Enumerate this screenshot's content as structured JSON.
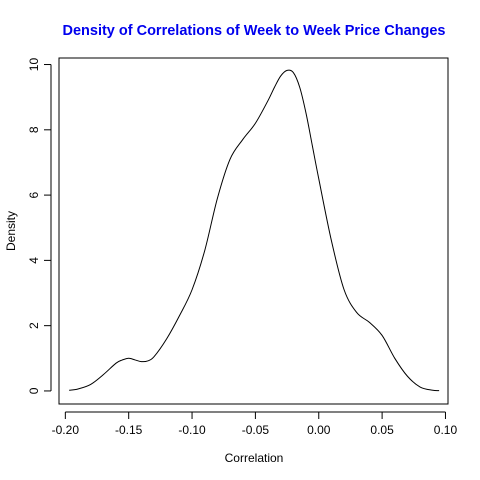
{
  "chart_data": {
    "type": "line",
    "title": "Density of Correlations of Week to Week Price Changes",
    "xlabel": "Correlation",
    "ylabel": "Density",
    "xlim": [
      -0.205,
      0.102
    ],
    "ylim": [
      -0.4,
      10.2
    ],
    "xticks": [
      -0.2,
      -0.15,
      -0.1,
      -0.05,
      0.0,
      0.05,
      0.1
    ],
    "xtick_labels": [
      "-0.20",
      "-0.15",
      "-0.10",
      "-0.05",
      "0.00",
      "0.05",
      "0.10"
    ],
    "yticks": [
      0,
      2,
      4,
      6,
      8,
      10
    ],
    "ytick_labels": [
      "0",
      "2",
      "4",
      "6",
      "8",
      "10"
    ],
    "grid": false,
    "line_color": "#000000",
    "title_color": "#0000ee",
    "series": [
      {
        "x": [
          -0.197,
          -0.19,
          -0.18,
          -0.17,
          -0.16,
          -0.155,
          -0.15,
          -0.145,
          -0.14,
          -0.135,
          -0.13,
          -0.12,
          -0.11,
          -0.1,
          -0.09,
          -0.08,
          -0.07,
          -0.06,
          -0.05,
          -0.04,
          -0.035,
          -0.03,
          -0.025,
          -0.02,
          -0.015,
          -0.01,
          -0.005,
          0.0,
          0.01,
          0.02,
          0.03,
          0.04,
          0.05,
          0.06,
          0.07,
          0.08,
          0.09,
          0.095
        ],
        "y": [
          0.02,
          0.06,
          0.2,
          0.5,
          0.85,
          0.95,
          1.0,
          0.95,
          0.9,
          0.92,
          1.05,
          1.6,
          2.3,
          3.1,
          4.3,
          5.9,
          7.1,
          7.7,
          8.2,
          8.9,
          9.3,
          9.65,
          9.82,
          9.75,
          9.3,
          8.5,
          7.5,
          6.5,
          4.6,
          3.1,
          2.4,
          2.1,
          1.7,
          1.0,
          0.45,
          0.12,
          0.02,
          0.01
        ]
      }
    ]
  }
}
